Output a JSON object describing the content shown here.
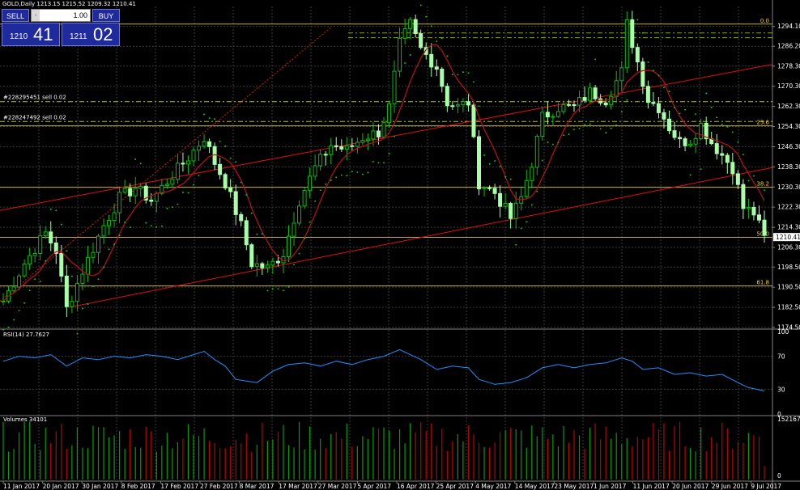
{
  "header": {
    "title": "GOLD,Daily  1213.15 1215.52 1209.32 1210.41"
  },
  "trade_panel": {
    "sell_label": "SELL",
    "buy_label": "BUY",
    "lot_value": "1.00",
    "lot_minus": "-",
    "sell_price_small": "1210",
    "sell_price_big": "41",
    "buy_price_small": "1211",
    "buy_price_big": "02"
  },
  "orders": [
    {
      "label": "#228295451 sell 0.02",
      "price": 1264.2
    },
    {
      "label": "#228247492 sell 0.02",
      "price": 1256.3
    }
  ],
  "fib_levels": [
    {
      "label": "0.0",
      "price": 1295.0
    },
    {
      "label": "23.6",
      "price": 1254.6
    },
    {
      "label": "38.2",
      "price": 1230.2
    },
    {
      "label": "50.0",
      "price": 1210.3
    },
    {
      "label": "61.8",
      "price": 1191.0
    }
  ],
  "colors": {
    "bull": "#00c000",
    "bear": "#a8ffa8",
    "grid": "#3a3a3a",
    "ma": "#c01010",
    "trend": "#e01010",
    "fib": "#c8b400",
    "psar": "#00e000",
    "rsi": "#1e90ff",
    "vol_up": "#00a000",
    "vol_down": "#c00000"
  },
  "indicators": {
    "rsi_label": "RSI(14) 27.7627",
    "volumes_label": "Volumes 34101"
  },
  "chart_data": {
    "type": "candlestick",
    "title": "GOLD,Daily",
    "price_axis": {
      "ylim": [
        1174.5,
        1302.0
      ],
      "ticks": [
        "1294.10",
        "1286.20",
        "1278.30",
        "1270.30",
        "1262.30",
        "1254.30",
        "1246.30",
        "1238.30",
        "1230.30",
        "1222.30",
        "1214.30",
        "1206.30",
        "1198.50",
        "1190.50",
        "1182.50",
        "1174.50"
      ],
      "current_price": "1210.41"
    },
    "x_labels": [
      "11 Jan 2017",
      "20 Jan 2017",
      "30 Jan 2017",
      "8 Feb 2017",
      "17 Feb 2017",
      "27 Feb 2017",
      "8 Mar 2017",
      "17 Mar 2017",
      "27 Mar 2017",
      "5 Apr 2017",
      "16 Apr 2017",
      "25 Apr 2017",
      "4 May 2017",
      "14 May 2017",
      "23 May 2017",
      "1 Jun 2017",
      "11 Jun 2017",
      "20 Jun 2017",
      "29 Jun 2017",
      "9 Jul 2017"
    ],
    "close_path": [
      [
        0,
        1185
      ],
      [
        4,
        1200
      ],
      [
        8,
        1212
      ],
      [
        10,
        1205
      ],
      [
        12,
        1182
      ],
      [
        15,
        1197
      ],
      [
        19,
        1215
      ],
      [
        22,
        1226
      ],
      [
        25,
        1230
      ],
      [
        28,
        1225
      ],
      [
        32,
        1235
      ],
      [
        35,
        1242
      ],
      [
        38,
        1250
      ],
      [
        40,
        1240
      ],
      [
        42,
        1232
      ],
      [
        45,
        1215
      ],
      [
        47,
        1200
      ],
      [
        50,
        1198
      ],
      [
        53,
        1204
      ],
      [
        56,
        1225
      ],
      [
        59,
        1238
      ],
      [
        62,
        1247
      ],
      [
        65,
        1245
      ],
      [
        68,
        1250
      ],
      [
        71,
        1252
      ],
      [
        73,
        1262
      ],
      [
        75,
        1287
      ],
      [
        77,
        1295
      ],
      [
        79,
        1285
      ],
      [
        82,
        1278
      ],
      [
        84,
        1264
      ],
      [
        86,
        1262
      ],
      [
        88,
        1264
      ],
      [
        90,
        1232
      ],
      [
        93,
        1228
      ],
      [
        96,
        1218
      ],
      [
        98,
        1226
      ],
      [
        100,
        1240
      ],
      [
        102,
        1258
      ],
      [
        105,
        1262
      ],
      [
        108,
        1262
      ],
      [
        111,
        1268
      ],
      [
        114,
        1265
      ],
      [
        117,
        1276
      ],
      [
        118,
        1295
      ],
      [
        120,
        1280
      ],
      [
        122,
        1265
      ],
      [
        124,
        1262
      ],
      [
        126,
        1254
      ],
      [
        128,
        1248
      ],
      [
        130,
        1249
      ],
      [
        132,
        1255
      ],
      [
        134,
        1248
      ],
      [
        136,
        1243
      ],
      [
        138,
        1238
      ],
      [
        140,
        1222
      ],
      [
        142,
        1220
      ],
      [
        144,
        1210
      ]
    ],
    "rsi": {
      "ylim": [
        0,
        100
      ],
      "ticks": [
        "100",
        "70",
        "30",
        "0"
      ],
      "values": [
        [
          0,
          64
        ],
        [
          3,
          70
        ],
        [
          6,
          68
        ],
        [
          9,
          72
        ],
        [
          12,
          58
        ],
        [
          15,
          68
        ],
        [
          18,
          66
        ],
        [
          21,
          70
        ],
        [
          24,
          68
        ],
        [
          27,
          72
        ],
        [
          30,
          70
        ],
        [
          33,
          66
        ],
        [
          36,
          72
        ],
        [
          38,
          76
        ],
        [
          40,
          66
        ],
        [
          42,
          58
        ],
        [
          44,
          42
        ],
        [
          46,
          40
        ],
        [
          48,
          38
        ],
        [
          51,
          52
        ],
        [
          54,
          60
        ],
        [
          57,
          62
        ],
        [
          60,
          58
        ],
        [
          63,
          64
        ],
        [
          66,
          60
        ],
        [
          69,
          66
        ],
        [
          72,
          70
        ],
        [
          75,
          78
        ],
        [
          77,
          72
        ],
        [
          79,
          66
        ],
        [
          82,
          54
        ],
        [
          85,
          58
        ],
        [
          88,
          56
        ],
        [
          90,
          42
        ],
        [
          93,
          36
        ],
        [
          96,
          38
        ],
        [
          99,
          44
        ],
        [
          102,
          56
        ],
        [
          105,
          60
        ],
        [
          108,
          56
        ],
        [
          111,
          60
        ],
        [
          114,
          62
        ],
        [
          117,
          68
        ],
        [
          119,
          64
        ],
        [
          121,
          54
        ],
        [
          124,
          56
        ],
        [
          127,
          48
        ],
        [
          130,
          50
        ],
        [
          133,
          46
        ],
        [
          136,
          48
        ],
        [
          139,
          38
        ],
        [
          141,
          32
        ],
        [
          144,
          28
        ]
      ]
    },
    "volume": {
      "ymax": "152167",
      "ticks": [
        "152167",
        "0"
      ],
      "last": "34101"
    }
  }
}
